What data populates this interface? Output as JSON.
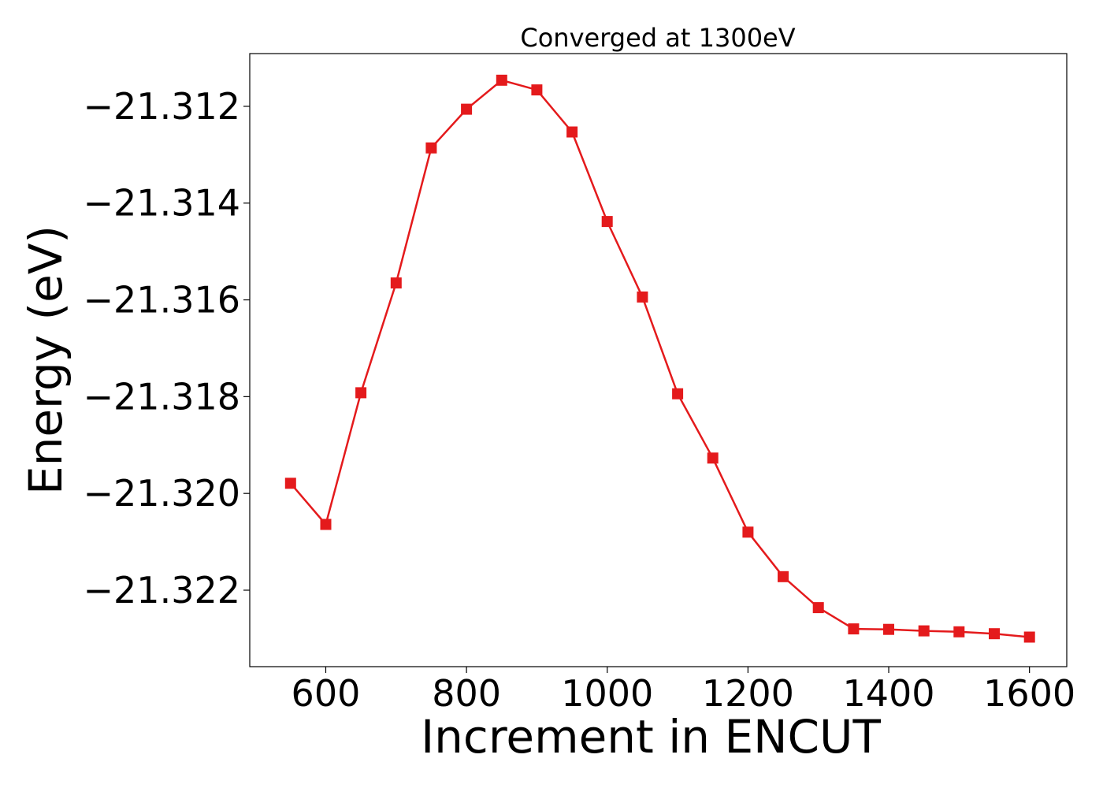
{
  "chart_data": {
    "type": "line",
    "title": "Converged at 1300eV",
    "xlabel": "Increment in ENCUT",
    "ylabel": "Energy (eV)",
    "xlim": [
      492,
      1653
    ],
    "ylim": [
      -21.32358,
      -21.31091
    ],
    "x_ticks": [
      600,
      800,
      1000,
      1200,
      1400,
      1600
    ],
    "x_tick_labels": [
      "600",
      "800",
      "1000",
      "1200",
      "1400",
      "1600"
    ],
    "y_ticks": [
      -21.312,
      -21.314,
      -21.316,
      -21.318,
      -21.32,
      -21.322
    ],
    "y_tick_labels": [
      "−21.312",
      "−21.314",
      "−21.316",
      "−21.318",
      "−21.320",
      "−21.322"
    ],
    "grid": false,
    "legend": "none",
    "marker": "square",
    "color": "#e41a1c",
    "x": [
      550,
      600,
      650,
      700,
      750,
      800,
      850,
      900,
      950,
      1000,
      1050,
      1100,
      1150,
      1200,
      1250,
      1300,
      1350,
      1400,
      1450,
      1500,
      1550,
      1600
    ],
    "y": [
      -21.31979,
      -21.32064,
      -21.31792,
      -21.31565,
      -21.31286,
      -21.31206,
      -21.31146,
      -21.31166,
      -21.31253,
      -21.31438,
      -21.31594,
      -21.31794,
      -21.31927,
      -21.3208,
      -21.32172,
      -21.32236,
      -21.3228,
      -21.32281,
      -21.32284,
      -21.32286,
      -21.3229,
      -21.32297
    ]
  }
}
